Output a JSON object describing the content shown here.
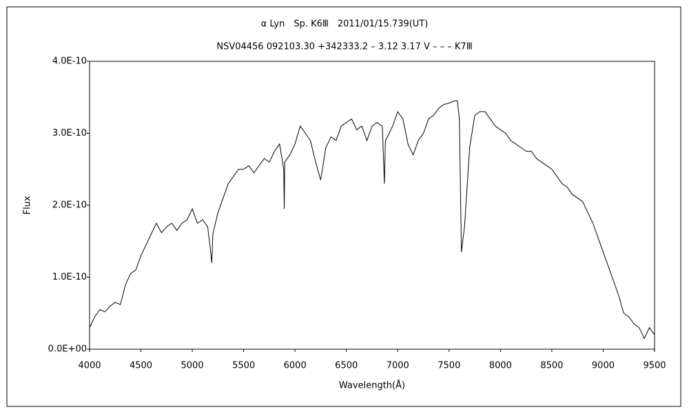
{
  "chart_data": {
    "type": "line",
    "title": "α Lyn　Sp. K6Ⅲ　2011/01/15.739(UT)",
    "subtitle": "NSV04456 092103.30 +342333.2 – 3.12 3.17 V – – – K7Ⅲ",
    "x_label": "Wavelength(Å)",
    "y_label": "Flux",
    "xlim": [
      4000,
      9500
    ],
    "xticks": [
      4000,
      4500,
      5000,
      5500,
      6000,
      6500,
      7000,
      7500,
      8000,
      8500,
      9000,
      9500
    ],
    "ylim": [
      0,
      4e-10
    ],
    "yticks": [
      {
        "value": 0,
        "label": "0.0E+00"
      },
      {
        "value": 1e-10,
        "label": "1.0E-10"
      },
      {
        "value": 2e-10,
        "label": "2.0E-10"
      },
      {
        "value": 3e-10,
        "label": "3.0E-10"
      },
      {
        "value": 4e-10,
        "label": "4.0E-10"
      }
    ],
    "grid": false,
    "series": [
      {
        "name": "Flux",
        "color": "#000000",
        "x": [
          4000,
          4050,
          4100,
          4150,
          4200,
          4250,
          4300,
          4350,
          4400,
          4450,
          4500,
          4550,
          4600,
          4650,
          4700,
          4750,
          4800,
          4850,
          4900,
          4950,
          5000,
          5050,
          5100,
          5150,
          5175,
          5190,
          5200,
          5250,
          5300,
          5350,
          5400,
          5450,
          5500,
          5550,
          5600,
          5650,
          5700,
          5750,
          5800,
          5850,
          5890,
          5895,
          5900,
          5950,
          6000,
          6050,
          6100,
          6150,
          6200,
          6250,
          6300,
          6350,
          6400,
          6450,
          6500,
          6550,
          6600,
          6650,
          6700,
          6750,
          6800,
          6850,
          6870,
          6880,
          6900,
          6950,
          7000,
          7050,
          7100,
          7150,
          7200,
          7250,
          7300,
          7350,
          7400,
          7450,
          7500,
          7550,
          7580,
          7600,
          7620,
          7650,
          7700,
          7750,
          7800,
          7850,
          7900,
          7950,
          8000,
          8050,
          8100,
          8150,
          8200,
          8250,
          8300,
          8350,
          8400,
          8450,
          8500,
          8550,
          8600,
          8650,
          8700,
          8750,
          8800,
          8850,
          8900,
          8950,
          9000,
          9050,
          9100,
          9150,
          9200,
          9250,
          9300,
          9350,
          9400,
          9450,
          9500
        ],
        "values": [
          3e-11,
          4.5e-11,
          5.5e-11,
          5.2e-11,
          6e-11,
          6.5e-11,
          6.2e-11,
          9e-11,
          1.05e-10,
          1.1e-10,
          1.3e-10,
          1.45e-10,
          1.6e-10,
          1.75e-10,
          1.62e-10,
          1.7e-10,
          1.75e-10,
          1.65e-10,
          1.75e-10,
          1.8e-10,
          1.95e-10,
          1.75e-10,
          1.8e-10,
          1.7e-10,
          1.4e-10,
          1.2e-10,
          1.6e-10,
          1.9e-10,
          2.1e-10,
          2.3e-10,
          2.4e-10,
          2.5e-10,
          2.5e-10,
          2.55e-10,
          2.45e-10,
          2.55e-10,
          2.65e-10,
          2.6e-10,
          2.75e-10,
          2.85e-10,
          2.5e-10,
          1.95e-10,
          2.6e-10,
          2.7e-10,
          2.85e-10,
          3.1e-10,
          3e-10,
          2.9e-10,
          2.6e-10,
          2.35e-10,
          2.8e-10,
          2.95e-10,
          2.9e-10,
          3.1e-10,
          3.15e-10,
          3.2e-10,
          3.05e-10,
          3.1e-10,
          2.9e-10,
          3.1e-10,
          3.15e-10,
          3.1e-10,
          2.3e-10,
          2.9e-10,
          2.95e-10,
          3.1e-10,
          3.3e-10,
          3.2e-10,
          2.85e-10,
          2.7e-10,
          2.9e-10,
          3e-10,
          3.2e-10,
          3.25e-10,
          3.35e-10,
          3.4e-10,
          3.42e-10,
          3.45e-10,
          3.45e-10,
          3.2e-10,
          1.35e-10,
          1.7e-10,
          2.8e-10,
          3.25e-10,
          3.3e-10,
          3.3e-10,
          3.2e-10,
          3.1e-10,
          3.05e-10,
          3e-10,
          2.9e-10,
          2.85e-10,
          2.8e-10,
          2.75e-10,
          2.75e-10,
          2.65e-10,
          2.6e-10,
          2.55e-10,
          2.5e-10,
          2.4e-10,
          2.3e-10,
          2.25e-10,
          2.15e-10,
          2.1e-10,
          2.05e-10,
          1.9e-10,
          1.75e-10,
          1.55e-10,
          1.35e-10,
          1.15e-10,
          9.5e-11,
          7.5e-11,
          5e-11,
          4.5e-11,
          3.5e-11,
          3e-11,
          1.5e-11,
          3e-11,
          2e-11
        ]
      }
    ]
  }
}
